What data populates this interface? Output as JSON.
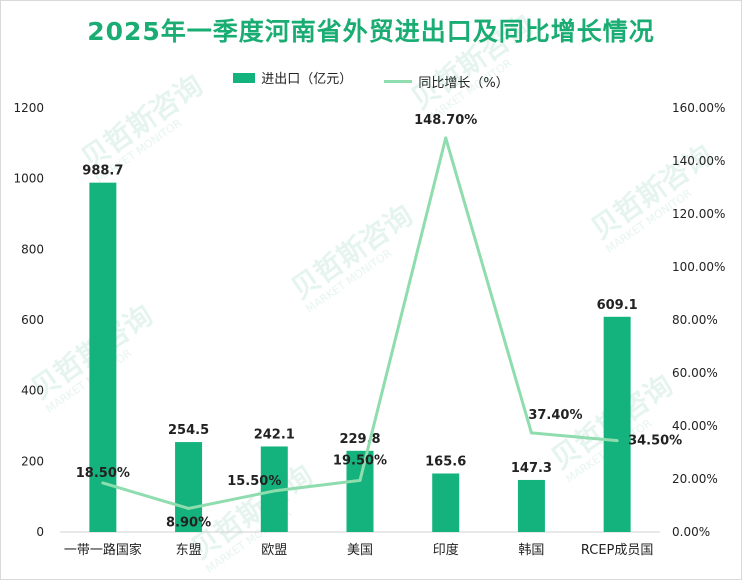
{
  "title": "2025年一季度河南省外贸进出口及同比增长情况",
  "watermark": {
    "brand": "贝哲斯咨询",
    "sub": "MARKET MONITOR"
  },
  "colors": {
    "bar": "#14b37d",
    "line": "#8fdcae",
    "title": "#1aad73"
  },
  "chart_data": {
    "type": "bar",
    "categories": [
      "一带一路国家",
      "东盟",
      "欧盟",
      "美国",
      "印度",
      "韩国",
      "RCEP成员国"
    ],
    "series": [
      {
        "name": "进出口（亿元）",
        "type": "bar",
        "axis": "left",
        "values": [
          988.7,
          254.5,
          242.1,
          229.8,
          165.6,
          147.3,
          609.1
        ],
        "labels": [
          "988.7",
          "254.5",
          "242.1",
          "229.8",
          "165.6",
          "147.3",
          "609.1"
        ]
      },
      {
        "name": "同比增长（%）",
        "type": "line",
        "axis": "right",
        "values": [
          18.5,
          8.9,
          15.5,
          19.5,
          148.7,
          37.4,
          34.5
        ],
        "labels": [
          "18.50%",
          "8.90%",
          "15.50%",
          "19.50%",
          "148.70%",
          "37.40%",
          "34.50%"
        ]
      }
    ],
    "y_left": {
      "min": 0,
      "max": 1200,
      "ticks": [
        "0",
        "200",
        "400",
        "600",
        "800",
        "1000",
        "1200"
      ]
    },
    "y_right": {
      "min": 0,
      "max": 160,
      "ticks": [
        "0.00%",
        "20.00%",
        "40.00%",
        "60.00%",
        "80.00%",
        "100.00%",
        "120.00%",
        "140.00%",
        "160.00%"
      ]
    },
    "legend": "top-center",
    "grid": false
  }
}
